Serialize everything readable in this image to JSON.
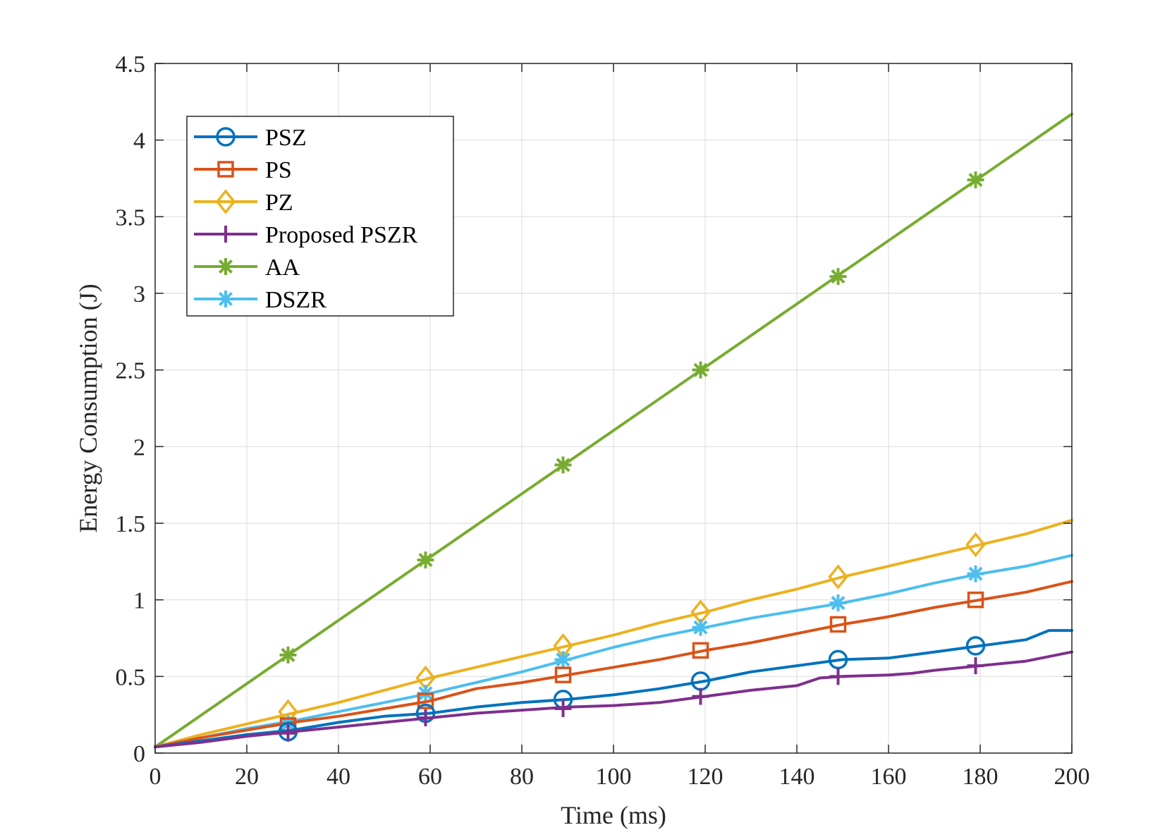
{
  "chart_data": {
    "type": "line",
    "title": "",
    "xlabel": "Time (ms)",
    "ylabel": "Energy Consumption (J)",
    "xlim": [
      0,
      200
    ],
    "ylim": [
      0,
      4.5
    ],
    "xticks": [
      0,
      20,
      40,
      60,
      80,
      100,
      120,
      140,
      160,
      180,
      200
    ],
    "yticks": [
      0,
      0.5,
      1,
      1.5,
      2,
      2.5,
      3,
      3.5,
      4,
      4.5
    ],
    "xtick_labels": [
      "0",
      "20",
      "40",
      "60",
      "80",
      "100",
      "120",
      "140",
      "160",
      "180",
      "200"
    ],
    "ytick_labels": [
      "0",
      "0.5",
      "1",
      "1.5",
      "2",
      "2.5",
      "3",
      "3.5",
      "4",
      "4.5"
    ],
    "grid": true,
    "legend_position": "top-left",
    "series": [
      {
        "name": "PSZ",
        "color": "#0072BD",
        "marker": "circle",
        "x": [
          0,
          10,
          20,
          30,
          40,
          50,
          60,
          70,
          80,
          90,
          100,
          110,
          120,
          130,
          140,
          150,
          160,
          170,
          180,
          190,
          195,
          200
        ],
        "y": [
          0.04,
          0.08,
          0.12,
          0.15,
          0.2,
          0.24,
          0.26,
          0.3,
          0.33,
          0.35,
          0.38,
          0.42,
          0.47,
          0.53,
          0.57,
          0.61,
          0.62,
          0.66,
          0.7,
          0.74,
          0.8,
          0.8
        ],
        "marker_x": [
          29,
          59,
          89,
          119,
          149,
          179
        ],
        "marker_y": [
          0.14,
          0.26,
          0.35,
          0.47,
          0.61,
          0.7
        ]
      },
      {
        "name": "PS",
        "color": "#D95319",
        "marker": "square",
        "x": [
          0,
          10,
          20,
          30,
          40,
          50,
          60,
          70,
          80,
          90,
          100,
          110,
          120,
          130,
          140,
          150,
          160,
          170,
          180,
          190,
          200
        ],
        "y": [
          0.04,
          0.1,
          0.15,
          0.2,
          0.24,
          0.29,
          0.34,
          0.42,
          0.46,
          0.51,
          0.56,
          0.61,
          0.67,
          0.72,
          0.78,
          0.84,
          0.89,
          0.95,
          1.0,
          1.05,
          1.12
        ],
        "marker_x": [
          29,
          59,
          89,
          119,
          149,
          179
        ],
        "marker_y": [
          0.18,
          0.34,
          0.51,
          0.67,
          0.84,
          1.0
        ]
      },
      {
        "name": "PZ",
        "color": "#EDB120",
        "marker": "diamond",
        "x": [
          0,
          10,
          20,
          30,
          40,
          50,
          60,
          70,
          80,
          90,
          100,
          110,
          120,
          130,
          140,
          150,
          160,
          170,
          180,
          190,
          200
        ],
        "y": [
          0.04,
          0.12,
          0.19,
          0.26,
          0.33,
          0.41,
          0.49,
          0.56,
          0.63,
          0.7,
          0.77,
          0.85,
          0.92,
          1.0,
          1.07,
          1.15,
          1.22,
          1.29,
          1.36,
          1.43,
          1.52
        ],
        "marker_x": [
          29,
          59,
          89,
          119,
          149,
          179
        ],
        "marker_y": [
          0.27,
          0.49,
          0.7,
          0.92,
          1.15,
          1.36
        ]
      },
      {
        "name": "Proposed PSZR",
        "color": "#7E2F8E",
        "marker": "plus",
        "x": [
          0,
          10,
          20,
          30,
          40,
          50,
          60,
          70,
          80,
          90,
          100,
          110,
          120,
          130,
          140,
          145,
          150,
          160,
          165,
          170,
          180,
          190,
          200
        ],
        "y": [
          0.04,
          0.07,
          0.11,
          0.14,
          0.17,
          0.2,
          0.23,
          0.26,
          0.28,
          0.3,
          0.31,
          0.33,
          0.37,
          0.41,
          0.44,
          0.49,
          0.5,
          0.51,
          0.52,
          0.54,
          0.57,
          0.6,
          0.66
        ],
        "marker_x": [
          29,
          59,
          89,
          119,
          149,
          179
        ],
        "marker_y": [
          0.13,
          0.23,
          0.29,
          0.37,
          0.5,
          0.57
        ]
      },
      {
        "name": "AA",
        "color": "#77AC30",
        "marker": "asterisk",
        "x": [
          0,
          200
        ],
        "y": [
          0.04,
          4.17
        ],
        "marker_x": [
          29,
          59,
          89,
          119,
          149,
          179
        ],
        "marker_y": [
          0.64,
          1.26,
          1.88,
          2.5,
          3.11,
          3.74
        ]
      },
      {
        "name": "DSZR",
        "color": "#4DBEEE",
        "marker": "asterisk",
        "x": [
          0,
          10,
          20,
          30,
          40,
          50,
          60,
          70,
          80,
          90,
          100,
          110,
          120,
          130,
          140,
          150,
          160,
          170,
          180,
          190,
          200
        ],
        "y": [
          0.04,
          0.1,
          0.16,
          0.21,
          0.27,
          0.33,
          0.39,
          0.46,
          0.53,
          0.61,
          0.69,
          0.76,
          0.82,
          0.88,
          0.93,
          0.98,
          1.04,
          1.11,
          1.17,
          1.22,
          1.29
        ],
        "marker_x": [
          29,
          59,
          89,
          119,
          149,
          179
        ],
        "marker_y": [
          0.19,
          0.39,
          0.61,
          0.82,
          0.98,
          1.17
        ]
      }
    ]
  }
}
